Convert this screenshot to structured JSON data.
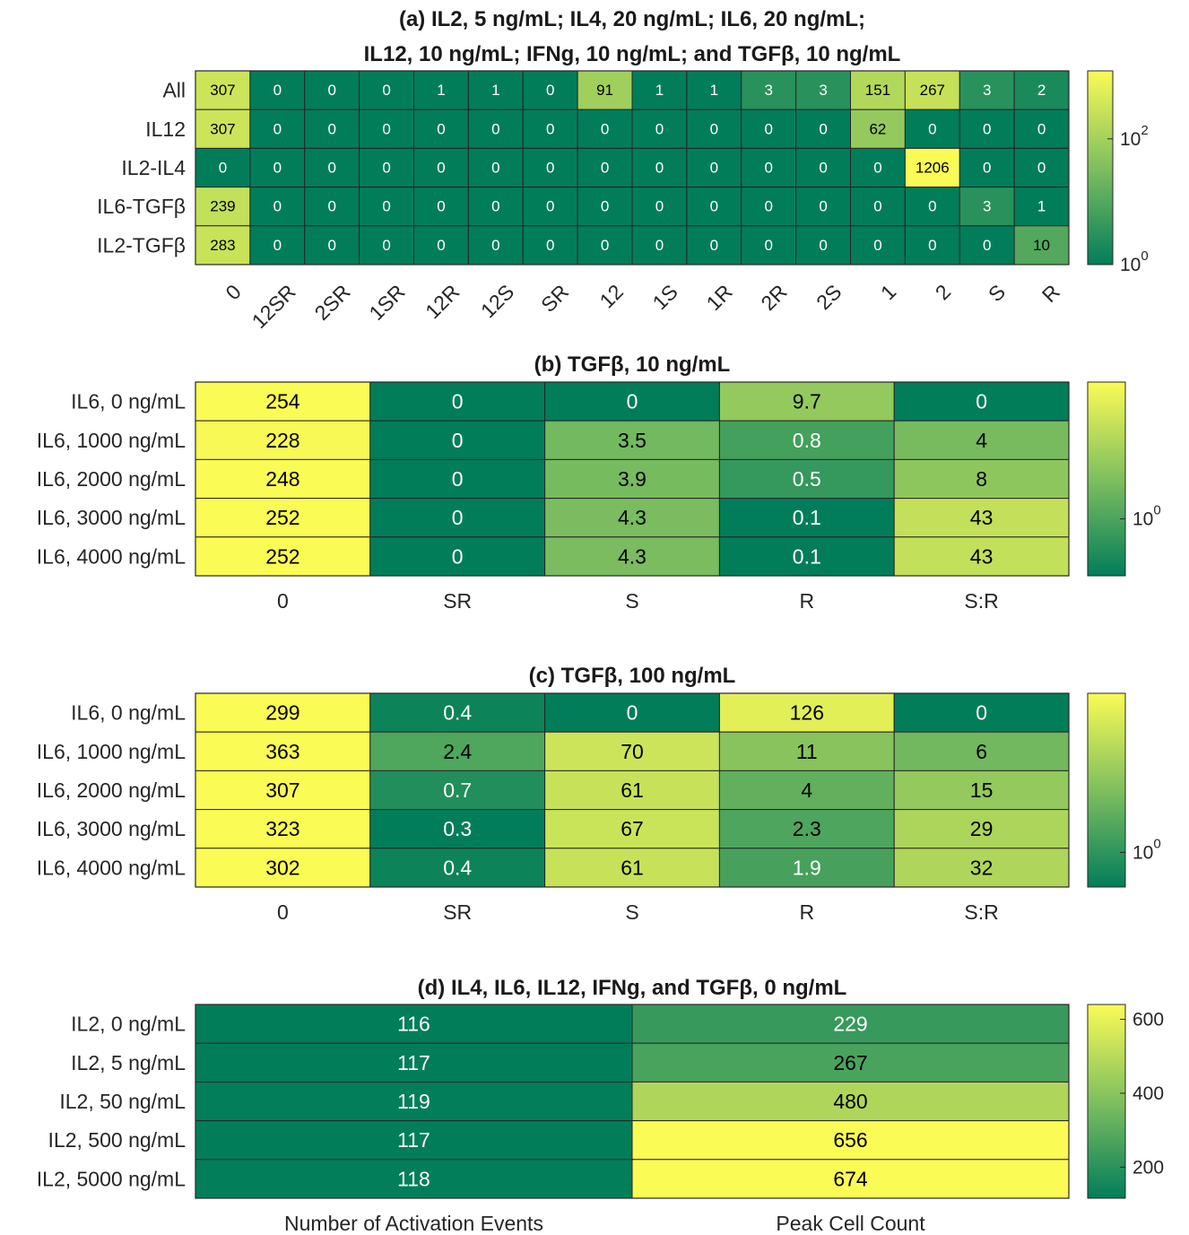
{
  "colors": {
    "low": "#027d5a",
    "mid": "#7fbf5f",
    "high": "#fbfb55",
    "grid": "#262626",
    "text": "#262626"
  },
  "chart_data": [
    {
      "id": "a",
      "type": "heatmap",
      "title_lines": [
        "(a) IL2, 5 ng/mL; IL4, 20 ng/mL; IL6, 20 ng/mL;",
        "IL12, 10 ng/mL; IFNg, 10 ng/mL; and TGFβ, 10 ng/mL"
      ],
      "rows": [
        "All",
        "IL12",
        "IL2-IL4",
        "IL6-TGFβ",
        "IL2-TGFβ"
      ],
      "cols": [
        "0",
        "12SR",
        "2SR",
        "1SR",
        "12R",
        "12S",
        "SR",
        "12",
        "1S",
        "1R",
        "2R",
        "2S",
        "1",
        "2",
        "S",
        "R"
      ],
      "col_label_rotation": -45,
      "values": [
        [
          307,
          0,
          0,
          0,
          1,
          1,
          0,
          91,
          1,
          1,
          3,
          3,
          151,
          267,
          3,
          2
        ],
        [
          307,
          0,
          0,
          0,
          0,
          0,
          0,
          0,
          0,
          0,
          0,
          0,
          62,
          0,
          0,
          0
        ],
        [
          0,
          0,
          0,
          0,
          0,
          0,
          0,
          0,
          0,
          0,
          0,
          0,
          0,
          1206,
          0,
          0
        ],
        [
          239,
          0,
          0,
          0,
          0,
          0,
          0,
          0,
          0,
          0,
          0,
          0,
          0,
          0,
          3,
          1
        ],
        [
          283,
          0,
          0,
          0,
          0,
          0,
          0,
          0,
          0,
          0,
          0,
          0,
          0,
          0,
          0,
          10
        ]
      ],
      "labels": [
        [
          "307",
          "0",
          "0",
          "0",
          "1",
          "1",
          "0",
          "91",
          "1",
          "1",
          "3",
          "3",
          "151",
          "267",
          "3",
          "2"
        ],
        [
          "307",
          "0",
          "0",
          "0",
          "0",
          "0",
          "0",
          "0",
          "0",
          "0",
          "0",
          "0",
          "62",
          "0",
          "0",
          "0"
        ],
        [
          "0",
          "0",
          "0",
          "0",
          "0",
          "0",
          "0",
          "0",
          "0",
          "0",
          "0",
          "0",
          "0",
          "1206",
          "0",
          "0"
        ],
        [
          "239",
          "0",
          "0",
          "0",
          "0",
          "0",
          "0",
          "0",
          "0",
          "0",
          "0",
          "0",
          "0",
          "0",
          "3",
          "1"
        ],
        [
          "283",
          "0",
          "0",
          "0",
          "0",
          "0",
          "0",
          "0",
          "0",
          "0",
          "0",
          "0",
          "0",
          "0",
          "0",
          "10"
        ]
      ],
      "color_scale": "log",
      "clim": [
        1,
        1206
      ],
      "colorbar_ticks": [
        {
          "value": 100,
          "base": "10",
          "exp": "2"
        },
        {
          "value": 1,
          "base": "10",
          "exp": "0"
        }
      ],
      "small_text": true
    },
    {
      "id": "b",
      "type": "heatmap",
      "title_lines": [
        "(b) TGFβ, 10 ng/mL"
      ],
      "rows": [
        "IL6, 0 ng/mL",
        "IL6, 1000 ng/mL",
        "IL6, 2000 ng/mL",
        "IL6, 3000 ng/mL",
        "IL6, 4000 ng/mL"
      ],
      "cols": [
        "0",
        "SR",
        "S",
        "R",
        "S:R"
      ],
      "col_label_rotation": 0,
      "values": [
        [
          254,
          0,
          0,
          9.7,
          0
        ],
        [
          228,
          0,
          3.5,
          0.8,
          4
        ],
        [
          248,
          0,
          3.9,
          0.5,
          8
        ],
        [
          252,
          0,
          4.3,
          0.1,
          43
        ],
        [
          252,
          0,
          4.3,
          0.1,
          43
        ]
      ],
      "labels": [
        [
          "254",
          "0",
          "0",
          "9.7",
          "0"
        ],
        [
          "228",
          "0",
          "3.5",
          "0.8",
          "4"
        ],
        [
          "248",
          "0",
          "3.9",
          "0.5",
          "8"
        ],
        [
          "252",
          "0",
          "4.3",
          "0.1",
          "43"
        ],
        [
          "252",
          "0",
          "4.3",
          "0.1",
          "43"
        ]
      ],
      "color_scale": "log",
      "clim": [
        0.1,
        254
      ],
      "colorbar_ticks": [
        {
          "value": 1,
          "base": "10",
          "exp": "0"
        }
      ],
      "small_text": false
    },
    {
      "id": "c",
      "type": "heatmap",
      "title_lines": [
        "(c) TGFβ, 100 ng/mL"
      ],
      "rows": [
        "IL6, 0 ng/mL",
        "IL6, 1000 ng/mL",
        "IL6, 2000 ng/mL",
        "IL6, 3000 ng/mL",
        "IL6, 4000 ng/mL"
      ],
      "cols": [
        "0",
        "SR",
        "S",
        "R",
        "S:R"
      ],
      "col_label_rotation": 0,
      "values": [
        [
          299,
          0.4,
          0,
          126,
          0
        ],
        [
          363,
          2.4,
          70,
          11,
          6
        ],
        [
          307,
          0.7,
          61,
          4,
          15
        ],
        [
          323,
          0.3,
          67,
          2.3,
          29
        ],
        [
          302,
          0.4,
          61,
          1.9,
          32
        ]
      ],
      "labels": [
        [
          "299",
          "0.4",
          "0",
          "126",
          "0"
        ],
        [
          "363",
          "2.4",
          "70",
          "11",
          "6"
        ],
        [
          "307",
          "0.7",
          "61",
          "4",
          "15"
        ],
        [
          "323",
          "0.3",
          "67",
          "2.3",
          "29"
        ],
        [
          "302",
          "0.4",
          "61",
          "1.9",
          "32"
        ]
      ],
      "color_scale": "log",
      "clim": [
        0.3,
        250
      ],
      "colorbar_ticks": [
        {
          "value": 1,
          "base": "10",
          "exp": "0"
        }
      ],
      "small_text": false
    },
    {
      "id": "d",
      "type": "heatmap",
      "title_lines": [
        "(d) IL4, IL6, IL12, IFNg, and TGFβ, 0 ng/mL"
      ],
      "rows": [
        "IL2, 0 ng/mL",
        "IL2, 5 ng/mL",
        "IL2, 50 ng/mL",
        "IL2, 500 ng/mL",
        "IL2, 5000 ng/mL"
      ],
      "cols": [
        "Number of Activation Events",
        "Peak Cell Count"
      ],
      "col_label_rotation": 0,
      "values": [
        [
          116,
          229
        ],
        [
          117,
          267
        ],
        [
          119,
          480
        ],
        [
          117,
          656
        ],
        [
          118,
          674
        ]
      ],
      "labels": [
        [
          "116",
          "229"
        ],
        [
          "117",
          "267"
        ],
        [
          "119",
          "480"
        ],
        [
          "117",
          "656"
        ],
        [
          "118",
          "674"
        ]
      ],
      "color_scale": "linear",
      "clim": [
        116,
        640
      ],
      "colorbar_ticks": [
        {
          "value": 600,
          "base": "600",
          "exp": ""
        },
        {
          "value": 400,
          "base": "400",
          "exp": ""
        },
        {
          "value": 200,
          "base": "200",
          "exp": ""
        }
      ],
      "small_text": false
    }
  ]
}
